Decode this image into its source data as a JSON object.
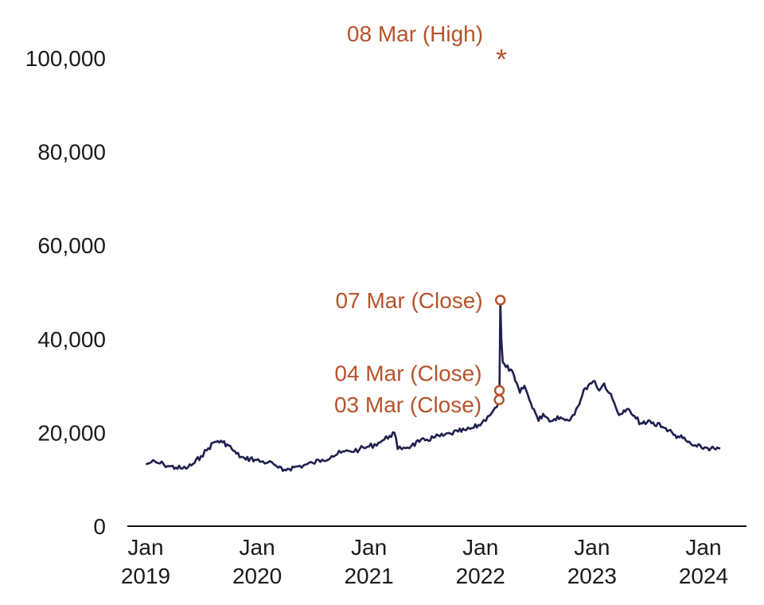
{
  "chart_data": {
    "type": "line",
    "title": "",
    "xlabel": "",
    "ylabel": "",
    "ylim": [
      0,
      100000
    ],
    "grid": false,
    "line_color": "#1f1f4f",
    "annotation_color": "#b5532c",
    "y_ticks": [
      {
        "value": 0,
        "label": "0"
      },
      {
        "value": 20000,
        "label": "20,000"
      },
      {
        "value": 40000,
        "label": "40,000"
      },
      {
        "value": 60000,
        "label": "60,000"
      },
      {
        "value": 80000,
        "label": "80,000"
      },
      {
        "value": 100000,
        "label": "100,000"
      }
    ],
    "x_ticks": [
      {
        "date": "2019-01-01",
        "line1": "Jan",
        "line2": "2019"
      },
      {
        "date": "2020-01-01",
        "line1": "Jan",
        "line2": "2020"
      },
      {
        "date": "2021-01-01",
        "line1": "Jan",
        "line2": "2021"
      },
      {
        "date": "2022-01-01",
        "line1": "Jan",
        "line2": "2022"
      },
      {
        "date": "2023-01-01",
        "line1": "Jan",
        "line2": "2023"
      },
      {
        "date": "2024-01-01",
        "line1": "Jan",
        "line2": "2024"
      }
    ],
    "x_range": [
      "2018-10-01",
      "2024-05-01"
    ],
    "series": [
      {
        "points": [
          [
            "2019-01-02",
            13200
          ],
          [
            "2019-01-20",
            13700
          ],
          [
            "2019-02-10",
            13500
          ],
          [
            "2019-03-01",
            13200
          ],
          [
            "2019-03-20",
            12800
          ],
          [
            "2019-04-10",
            12500
          ],
          [
            "2019-05-01",
            12300
          ],
          [
            "2019-05-20",
            12600
          ],
          [
            "2019-06-10",
            13500
          ],
          [
            "2019-07-01",
            15000
          ],
          [
            "2019-07-20",
            16200
          ],
          [
            "2019-08-10",
            17800
          ],
          [
            "2019-08-25",
            18200
          ],
          [
            "2019-09-10",
            17900
          ],
          [
            "2019-09-25",
            17500
          ],
          [
            "2019-10-10",
            16500
          ],
          [
            "2019-10-25",
            15500
          ],
          [
            "2019-11-10",
            14800
          ],
          [
            "2019-11-25",
            14200
          ],
          [
            "2019-12-10",
            14500
          ],
          [
            "2019-12-25",
            14200
          ],
          [
            "2020-01-15",
            13800
          ],
          [
            "2020-02-05",
            13600
          ],
          [
            "2020-02-25",
            13200
          ],
          [
            "2020-03-10",
            12500
          ],
          [
            "2020-03-25",
            11800
          ],
          [
            "2020-04-10",
            12300
          ],
          [
            "2020-05-01",
            12600
          ],
          [
            "2020-06-01",
            13000
          ],
          [
            "2020-07-01",
            13500
          ],
          [
            "2020-08-01",
            14200
          ],
          [
            "2020-09-01",
            15000
          ],
          [
            "2020-10-01",
            15700
          ],
          [
            "2020-11-01",
            16000
          ],
          [
            "2020-12-01",
            16400
          ],
          [
            "2021-01-01",
            17000
          ],
          [
            "2021-02-01",
            17800
          ],
          [
            "2021-02-20",
            18500
          ],
          [
            "2021-03-10",
            19300
          ],
          [
            "2021-03-25",
            20000
          ],
          [
            "2021-04-05",
            16500
          ],
          [
            "2021-04-25",
            16800
          ],
          [
            "2021-05-20",
            17200
          ],
          [
            "2021-06-15",
            18000
          ],
          [
            "2021-07-10",
            18500
          ],
          [
            "2021-08-05",
            19000
          ],
          [
            "2021-09-01",
            19300
          ],
          [
            "2021-09-25",
            19800
          ],
          [
            "2021-10-20",
            20200
          ],
          [
            "2021-11-15",
            20500
          ],
          [
            "2021-12-10",
            21000
          ],
          [
            "2022-01-05",
            22000
          ],
          [
            "2022-01-25",
            23500
          ],
          [
            "2022-02-10",
            24500
          ],
          [
            "2022-02-24",
            25500
          ],
          [
            "2022-03-03",
            27000
          ],
          [
            "2022-03-04",
            29000
          ],
          [
            "2022-03-07",
            48300
          ],
          [
            "2022-03-10",
            40000
          ],
          [
            "2022-03-15",
            35000
          ],
          [
            "2022-03-25",
            34000
          ],
          [
            "2022-04-10",
            33500
          ],
          [
            "2022-04-25",
            31000
          ],
          [
            "2022-05-10",
            28500
          ],
          [
            "2022-05-25",
            30000
          ],
          [
            "2022-06-10",
            27000
          ],
          [
            "2022-06-25",
            25000
          ],
          [
            "2022-07-10",
            22500
          ],
          [
            "2022-07-25",
            24000
          ],
          [
            "2022-08-10",
            23000
          ],
          [
            "2022-08-25",
            22500
          ],
          [
            "2022-09-10",
            23500
          ],
          [
            "2022-09-25",
            23000
          ],
          [
            "2022-10-10",
            22800
          ],
          [
            "2022-10-25",
            23200
          ],
          [
            "2022-11-10",
            25000
          ],
          [
            "2022-11-25",
            27000
          ],
          [
            "2022-12-10",
            29500
          ],
          [
            "2022-12-25",
            30500
          ],
          [
            "2023-01-10",
            31000
          ],
          [
            "2023-01-25",
            29000
          ],
          [
            "2023-02-10",
            30500
          ],
          [
            "2023-02-25",
            28500
          ],
          [
            "2023-03-10",
            27000
          ],
          [
            "2023-03-25",
            24500
          ],
          [
            "2023-04-10",
            24000
          ],
          [
            "2023-04-25",
            25000
          ],
          [
            "2023-05-10",
            24000
          ],
          [
            "2023-05-25",
            23000
          ],
          [
            "2023-06-10",
            22000
          ],
          [
            "2023-06-25",
            21800
          ],
          [
            "2023-07-10",
            22500
          ],
          [
            "2023-07-25",
            21500
          ],
          [
            "2023-08-10",
            22000
          ],
          [
            "2023-08-25",
            21000
          ],
          [
            "2023-09-10",
            20500
          ],
          [
            "2023-09-25",
            19500
          ],
          [
            "2023-10-10",
            19200
          ],
          [
            "2023-10-25",
            18800
          ],
          [
            "2023-11-10",
            18000
          ],
          [
            "2023-11-25",
            17300
          ],
          [
            "2023-12-10",
            17000
          ],
          [
            "2023-12-25",
            16800
          ],
          [
            "2024-01-10",
            16800
          ],
          [
            "2024-01-25",
            16600
          ],
          [
            "2024-02-10",
            16400
          ],
          [
            "2024-02-25",
            16600
          ]
        ]
      }
    ],
    "annotations": [
      {
        "label": "08 Mar (High)",
        "date": "2022-03-08",
        "value": 101000,
        "marker": "asterisk"
      },
      {
        "label": "07 Mar (Close)",
        "date": "2022-03-07",
        "value": 48300,
        "marker": "circle"
      },
      {
        "label": "04 Mar (Close)",
        "date": "2022-03-04",
        "value": 29000,
        "marker": "circle"
      },
      {
        "label": "03 Mar (Close)",
        "date": "2022-03-03",
        "value": 27000,
        "marker": "circle"
      }
    ]
  }
}
